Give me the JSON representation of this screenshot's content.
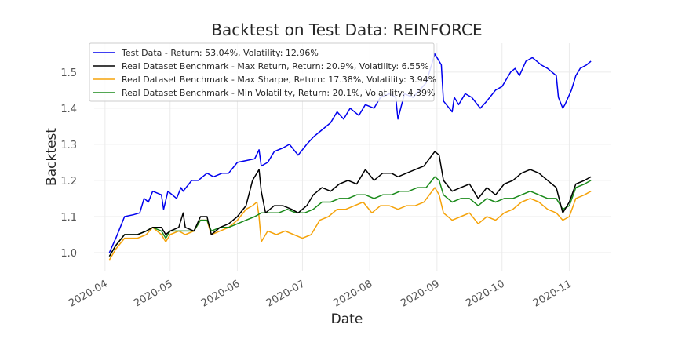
{
  "chart_data": {
    "type": "line",
    "title": "Backtest on Test Data: REINFORCE",
    "xlabel": "Date",
    "ylabel": "Backtest",
    "ylim": [
      0.95,
      1.58
    ],
    "yticks": [
      1.0,
      1.1,
      1.2,
      1.3,
      1.4,
      1.5
    ],
    "ytick_labels": [
      "1.0",
      "1.1",
      "1.2",
      "1.3",
      "1.4",
      "1.5"
    ],
    "xlim": [
      "2020-03-27",
      "2020-11-20"
    ],
    "xticks": [
      "2020-04-01",
      "2020-05-01",
      "2020-06-01",
      "2020-07-01",
      "2020-08-01",
      "2020-09-01",
      "2020-10-01",
      "2020-11-01"
    ],
    "xtick_labels": [
      "2020-04",
      "2020-05",
      "2020-06",
      "2020-07",
      "2020-08",
      "2020-09",
      "2020-10",
      "2020-11"
    ],
    "grid": true,
    "legend_position": "top-left",
    "series": [
      {
        "name": "Test Data - Return: 53.04%, Volatility: 12.96%",
        "color": "#0000ee",
        "points": [
          [
            "2020-04-03",
            1.0
          ],
          [
            "2020-04-06",
            1.04
          ],
          [
            "2020-04-08",
            1.07
          ],
          [
            "2020-04-10",
            1.1
          ],
          [
            "2020-04-14",
            1.105
          ],
          [
            "2020-04-17",
            1.11
          ],
          [
            "2020-04-19",
            1.15
          ],
          [
            "2020-04-21",
            1.14
          ],
          [
            "2020-04-23",
            1.17
          ],
          [
            "2020-04-27",
            1.16
          ],
          [
            "2020-04-28",
            1.12
          ],
          [
            "2020-04-30",
            1.17
          ],
          [
            "2020-05-04",
            1.15
          ],
          [
            "2020-05-06",
            1.18
          ],
          [
            "2020-05-07",
            1.17
          ],
          [
            "2020-05-11",
            1.2
          ],
          [
            "2020-05-14",
            1.2
          ],
          [
            "2020-05-18",
            1.22
          ],
          [
            "2020-05-21",
            1.21
          ],
          [
            "2020-05-25",
            1.22
          ],
          [
            "2020-05-28",
            1.22
          ],
          [
            "2020-06-01",
            1.25
          ],
          [
            "2020-06-05",
            1.255
          ],
          [
            "2020-06-09",
            1.26
          ],
          [
            "2020-06-11",
            1.285
          ],
          [
            "2020-06-12",
            1.24
          ],
          [
            "2020-06-15",
            1.25
          ],
          [
            "2020-06-18",
            1.28
          ],
          [
            "2020-06-22",
            1.29
          ],
          [
            "2020-06-25",
            1.3
          ],
          [
            "2020-06-29",
            1.27
          ],
          [
            "2020-07-03",
            1.3
          ],
          [
            "2020-07-06",
            1.32
          ],
          [
            "2020-07-10",
            1.34
          ],
          [
            "2020-07-14",
            1.36
          ],
          [
            "2020-07-17",
            1.39
          ],
          [
            "2020-07-20",
            1.37
          ],
          [
            "2020-07-23",
            1.4
          ],
          [
            "2020-07-27",
            1.38
          ],
          [
            "2020-07-30",
            1.41
          ],
          [
            "2020-08-03",
            1.4
          ],
          [
            "2020-08-06",
            1.43
          ],
          [
            "2020-08-10",
            1.44
          ],
          [
            "2020-08-13",
            1.43
          ],
          [
            "2020-08-14",
            1.37
          ],
          [
            "2020-08-17",
            1.44
          ],
          [
            "2020-08-21",
            1.43
          ],
          [
            "2020-08-24",
            1.45
          ],
          [
            "2020-08-27",
            1.47
          ],
          [
            "2020-08-31",
            1.55
          ],
          [
            "2020-09-03",
            1.52
          ],
          [
            "2020-09-04",
            1.42
          ],
          [
            "2020-09-08",
            1.39
          ],
          [
            "2020-09-09",
            1.43
          ],
          [
            "2020-09-11",
            1.41
          ],
          [
            "2020-09-14",
            1.44
          ],
          [
            "2020-09-17",
            1.43
          ],
          [
            "2020-09-21",
            1.4
          ],
          [
            "2020-09-24",
            1.42
          ],
          [
            "2020-09-28",
            1.45
          ],
          [
            "2020-10-01",
            1.46
          ],
          [
            "2020-10-05",
            1.5
          ],
          [
            "2020-10-07",
            1.51
          ],
          [
            "2020-10-09",
            1.49
          ],
          [
            "2020-10-12",
            1.53
          ],
          [
            "2020-10-15",
            1.54
          ],
          [
            "2020-10-19",
            1.52
          ],
          [
            "2020-10-22",
            1.51
          ],
          [
            "2020-10-26",
            1.49
          ],
          [
            "2020-10-27",
            1.43
          ],
          [
            "2020-10-29",
            1.4
          ],
          [
            "2020-10-30",
            1.41
          ],
          [
            "2020-11-02",
            1.45
          ],
          [
            "2020-11-04",
            1.49
          ],
          [
            "2020-11-06",
            1.51
          ],
          [
            "2020-11-09",
            1.52
          ],
          [
            "2020-11-11",
            1.53
          ]
        ]
      },
      {
        "name": "Real Dataset Benchmark - Max Return, Return: 20.9%, Volatility: 6.55%",
        "color": "#000000",
        "points": [
          [
            "2020-04-03",
            0.99
          ],
          [
            "2020-04-06",
            1.02
          ],
          [
            "2020-04-10",
            1.05
          ],
          [
            "2020-04-16",
            1.05
          ],
          [
            "2020-04-20",
            1.06
          ],
          [
            "2020-04-23",
            1.07
          ],
          [
            "2020-04-27",
            1.07
          ],
          [
            "2020-04-29",
            1.05
          ],
          [
            "2020-05-01",
            1.06
          ],
          [
            "2020-05-05",
            1.07
          ],
          [
            "2020-05-07",
            1.11
          ],
          [
            "2020-05-08",
            1.07
          ],
          [
            "2020-05-12",
            1.06
          ],
          [
            "2020-05-15",
            1.1
          ],
          [
            "2020-05-18",
            1.1
          ],
          [
            "2020-05-20",
            1.05
          ],
          [
            "2020-05-24",
            1.07
          ],
          [
            "2020-05-28",
            1.08
          ],
          [
            "2020-06-01",
            1.1
          ],
          [
            "2020-06-05",
            1.13
          ],
          [
            "2020-06-08",
            1.2
          ],
          [
            "2020-06-11",
            1.23
          ],
          [
            "2020-06-12",
            1.17
          ],
          [
            "2020-06-14",
            1.11
          ],
          [
            "2020-06-18",
            1.13
          ],
          [
            "2020-06-22",
            1.13
          ],
          [
            "2020-06-26",
            1.12
          ],
          [
            "2020-06-29",
            1.11
          ],
          [
            "2020-07-03",
            1.13
          ],
          [
            "2020-07-06",
            1.16
          ],
          [
            "2020-07-10",
            1.18
          ],
          [
            "2020-07-14",
            1.17
          ],
          [
            "2020-07-18",
            1.19
          ],
          [
            "2020-07-22",
            1.2
          ],
          [
            "2020-07-26",
            1.19
          ],
          [
            "2020-07-30",
            1.23
          ],
          [
            "2020-08-03",
            1.2
          ],
          [
            "2020-08-07",
            1.22
          ],
          [
            "2020-08-11",
            1.22
          ],
          [
            "2020-08-14",
            1.21
          ],
          [
            "2020-08-18",
            1.22
          ],
          [
            "2020-08-22",
            1.23
          ],
          [
            "2020-08-26",
            1.24
          ],
          [
            "2020-08-31",
            1.28
          ],
          [
            "2020-09-02",
            1.27
          ],
          [
            "2020-09-04",
            1.2
          ],
          [
            "2020-09-08",
            1.17
          ],
          [
            "2020-09-12",
            1.18
          ],
          [
            "2020-09-16",
            1.19
          ],
          [
            "2020-09-20",
            1.15
          ],
          [
            "2020-09-24",
            1.18
          ],
          [
            "2020-09-28",
            1.16
          ],
          [
            "2020-10-02",
            1.19
          ],
          [
            "2020-10-06",
            1.2
          ],
          [
            "2020-10-10",
            1.22
          ],
          [
            "2020-10-14",
            1.23
          ],
          [
            "2020-10-18",
            1.22
          ],
          [
            "2020-10-22",
            1.2
          ],
          [
            "2020-10-26",
            1.18
          ],
          [
            "2020-10-29",
            1.11
          ],
          [
            "2020-11-01",
            1.14
          ],
          [
            "2020-11-04",
            1.19
          ],
          [
            "2020-11-08",
            1.2
          ],
          [
            "2020-11-11",
            1.21
          ]
        ]
      },
      {
        "name": "Real Dataset Benchmark - Max Sharpe, Return: 17.38%, Volatility: 3.94%",
        "color": "#f5a30a",
        "points": [
          [
            "2020-04-03",
            0.98
          ],
          [
            "2020-04-06",
            1.01
          ],
          [
            "2020-04-10",
            1.04
          ],
          [
            "2020-04-16",
            1.04
          ],
          [
            "2020-04-20",
            1.05
          ],
          [
            "2020-04-23",
            1.07
          ],
          [
            "2020-04-27",
            1.05
          ],
          [
            "2020-04-29",
            1.03
          ],
          [
            "2020-05-01",
            1.05
          ],
          [
            "2020-05-05",
            1.06
          ],
          [
            "2020-05-08",
            1.05
          ],
          [
            "2020-05-12",
            1.06
          ],
          [
            "2020-05-15",
            1.09
          ],
          [
            "2020-05-18",
            1.09
          ],
          [
            "2020-05-20",
            1.05
          ],
          [
            "2020-05-24",
            1.06
          ],
          [
            "2020-05-28",
            1.07
          ],
          [
            "2020-06-01",
            1.09
          ],
          [
            "2020-06-05",
            1.12
          ],
          [
            "2020-06-08",
            1.13
          ],
          [
            "2020-06-10",
            1.14
          ],
          [
            "2020-06-11",
            1.1
          ],
          [
            "2020-06-12",
            1.03
          ],
          [
            "2020-06-15",
            1.06
          ],
          [
            "2020-06-19",
            1.05
          ],
          [
            "2020-06-23",
            1.06
          ],
          [
            "2020-06-27",
            1.05
          ],
          [
            "2020-07-01",
            1.04
          ],
          [
            "2020-07-05",
            1.05
          ],
          [
            "2020-07-09",
            1.09
          ],
          [
            "2020-07-13",
            1.1
          ],
          [
            "2020-07-17",
            1.12
          ],
          [
            "2020-07-21",
            1.12
          ],
          [
            "2020-07-25",
            1.13
          ],
          [
            "2020-07-29",
            1.14
          ],
          [
            "2020-08-02",
            1.11
          ],
          [
            "2020-08-06",
            1.13
          ],
          [
            "2020-08-10",
            1.13
          ],
          [
            "2020-08-14",
            1.12
          ],
          [
            "2020-08-18",
            1.13
          ],
          [
            "2020-08-22",
            1.13
          ],
          [
            "2020-08-26",
            1.14
          ],
          [
            "2020-08-31",
            1.18
          ],
          [
            "2020-09-02",
            1.16
          ],
          [
            "2020-09-04",
            1.11
          ],
          [
            "2020-09-08",
            1.09
          ],
          [
            "2020-09-12",
            1.1
          ],
          [
            "2020-09-16",
            1.11
          ],
          [
            "2020-09-20",
            1.08
          ],
          [
            "2020-09-24",
            1.1
          ],
          [
            "2020-09-28",
            1.09
          ],
          [
            "2020-10-02",
            1.11
          ],
          [
            "2020-10-06",
            1.12
          ],
          [
            "2020-10-10",
            1.14
          ],
          [
            "2020-10-14",
            1.15
          ],
          [
            "2020-10-18",
            1.14
          ],
          [
            "2020-10-22",
            1.12
          ],
          [
            "2020-10-26",
            1.11
          ],
          [
            "2020-10-29",
            1.09
          ],
          [
            "2020-11-01",
            1.1
          ],
          [
            "2020-11-04",
            1.15
          ],
          [
            "2020-11-08",
            1.16
          ],
          [
            "2020-11-11",
            1.17
          ]
        ]
      },
      {
        "name": "Real Dataset Benchmark - Min Volatility, Return: 20.1%, Volatility: 4.39%",
        "color": "#1a8a1a",
        "points": [
          [
            "2020-04-03",
            0.99
          ],
          [
            "2020-04-06",
            1.02
          ],
          [
            "2020-04-10",
            1.05
          ],
          [
            "2020-04-16",
            1.05
          ],
          [
            "2020-04-20",
            1.06
          ],
          [
            "2020-04-23",
            1.07
          ],
          [
            "2020-04-27",
            1.06
          ],
          [
            "2020-04-29",
            1.04
          ],
          [
            "2020-05-01",
            1.06
          ],
          [
            "2020-05-05",
            1.06
          ],
          [
            "2020-05-08",
            1.06
          ],
          [
            "2020-05-12",
            1.06
          ],
          [
            "2020-05-15",
            1.09
          ],
          [
            "2020-05-18",
            1.09
          ],
          [
            "2020-05-20",
            1.06
          ],
          [
            "2020-05-24",
            1.07
          ],
          [
            "2020-05-28",
            1.07
          ],
          [
            "2020-06-01",
            1.08
          ],
          [
            "2020-06-05",
            1.09
          ],
          [
            "2020-06-09",
            1.1
          ],
          [
            "2020-06-12",
            1.11
          ],
          [
            "2020-06-16",
            1.11
          ],
          [
            "2020-06-20",
            1.11
          ],
          [
            "2020-06-24",
            1.12
          ],
          [
            "2020-06-28",
            1.11
          ],
          [
            "2020-07-02",
            1.11
          ],
          [
            "2020-07-06",
            1.12
          ],
          [
            "2020-07-10",
            1.14
          ],
          [
            "2020-07-14",
            1.14
          ],
          [
            "2020-07-18",
            1.15
          ],
          [
            "2020-07-22",
            1.15
          ],
          [
            "2020-07-26",
            1.16
          ],
          [
            "2020-07-30",
            1.16
          ],
          [
            "2020-08-03",
            1.15
          ],
          [
            "2020-08-07",
            1.16
          ],
          [
            "2020-08-11",
            1.16
          ],
          [
            "2020-08-15",
            1.17
          ],
          [
            "2020-08-19",
            1.17
          ],
          [
            "2020-08-23",
            1.18
          ],
          [
            "2020-08-27",
            1.18
          ],
          [
            "2020-08-31",
            1.21
          ],
          [
            "2020-09-02",
            1.2
          ],
          [
            "2020-09-04",
            1.16
          ],
          [
            "2020-09-08",
            1.14
          ],
          [
            "2020-09-12",
            1.15
          ],
          [
            "2020-09-16",
            1.15
          ],
          [
            "2020-09-20",
            1.13
          ],
          [
            "2020-09-24",
            1.15
          ],
          [
            "2020-09-28",
            1.14
          ],
          [
            "2020-10-02",
            1.15
          ],
          [
            "2020-10-06",
            1.15
          ],
          [
            "2020-10-10",
            1.16
          ],
          [
            "2020-10-14",
            1.17
          ],
          [
            "2020-10-18",
            1.16
          ],
          [
            "2020-10-22",
            1.15
          ],
          [
            "2020-10-26",
            1.15
          ],
          [
            "2020-10-29",
            1.12
          ],
          [
            "2020-11-01",
            1.13
          ],
          [
            "2020-11-04",
            1.18
          ],
          [
            "2020-11-08",
            1.19
          ],
          [
            "2020-11-11",
            1.2
          ]
        ]
      }
    ]
  }
}
